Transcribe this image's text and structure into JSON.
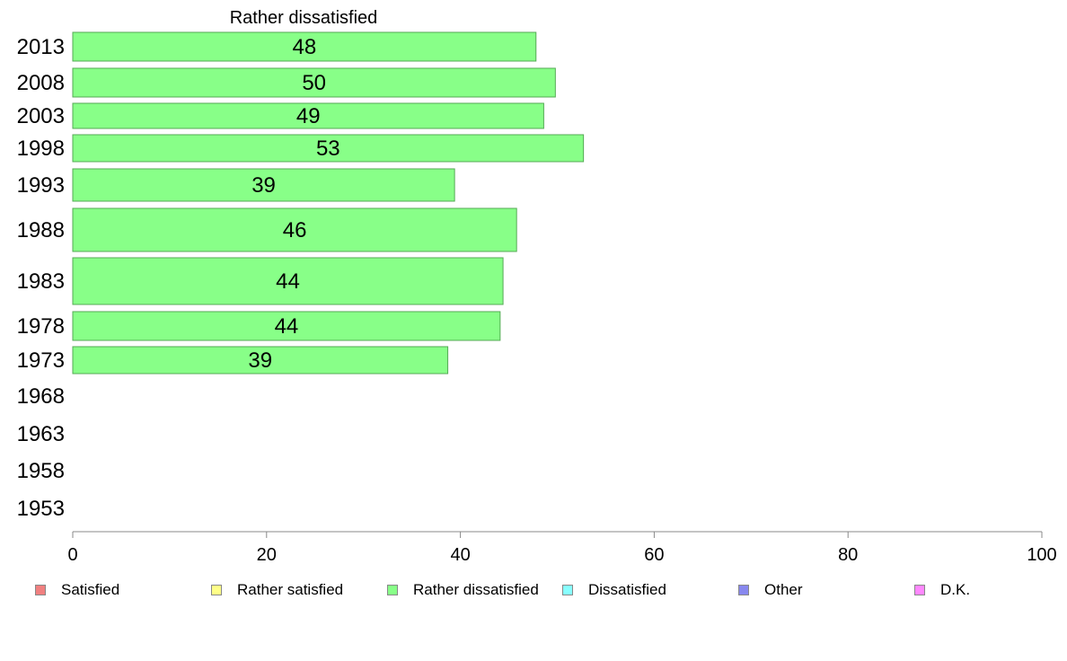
{
  "chart_data": {
    "type": "bar",
    "orientation": "horizontal",
    "title": "Rather dissatisfied",
    "categories": [
      "2013",
      "2008",
      "2003",
      "1998",
      "1993",
      "1988",
      "1983",
      "1978",
      "1973",
      "1968",
      "1963",
      "1958",
      "1953"
    ],
    "series": [
      {
        "name": "Rather dissatisfied",
        "color": "#88ff88",
        "values": [
          48,
          50,
          49,
          53,
          39,
          46,
          44,
          44,
          39,
          null,
          null,
          null,
          null
        ],
        "exact_values": [
          47.8,
          49.8,
          48.6,
          52.7,
          39.4,
          45.8,
          44.4,
          44.1,
          38.7,
          null,
          null,
          null,
          null
        ]
      }
    ],
    "xlim": [
      0,
      100
    ],
    "xticks": [
      "0",
      "20",
      "40",
      "60",
      "80",
      "100"
    ],
    "grid": false,
    "legend": {
      "placement": "bottom",
      "items": [
        {
          "label": "Satisfied",
          "color": "#f08080"
        },
        {
          "label": "Rather satisfied",
          "color": "#ffff88"
        },
        {
          "label": "Rather dissatisfied",
          "color": "#88ff88"
        },
        {
          "label": "Dissatisfied",
          "color": "#88ffff"
        },
        {
          "label": "Other",
          "color": "#8888ee"
        },
        {
          "label": "D.K.",
          "color": "#ff88ff"
        }
      ]
    }
  }
}
